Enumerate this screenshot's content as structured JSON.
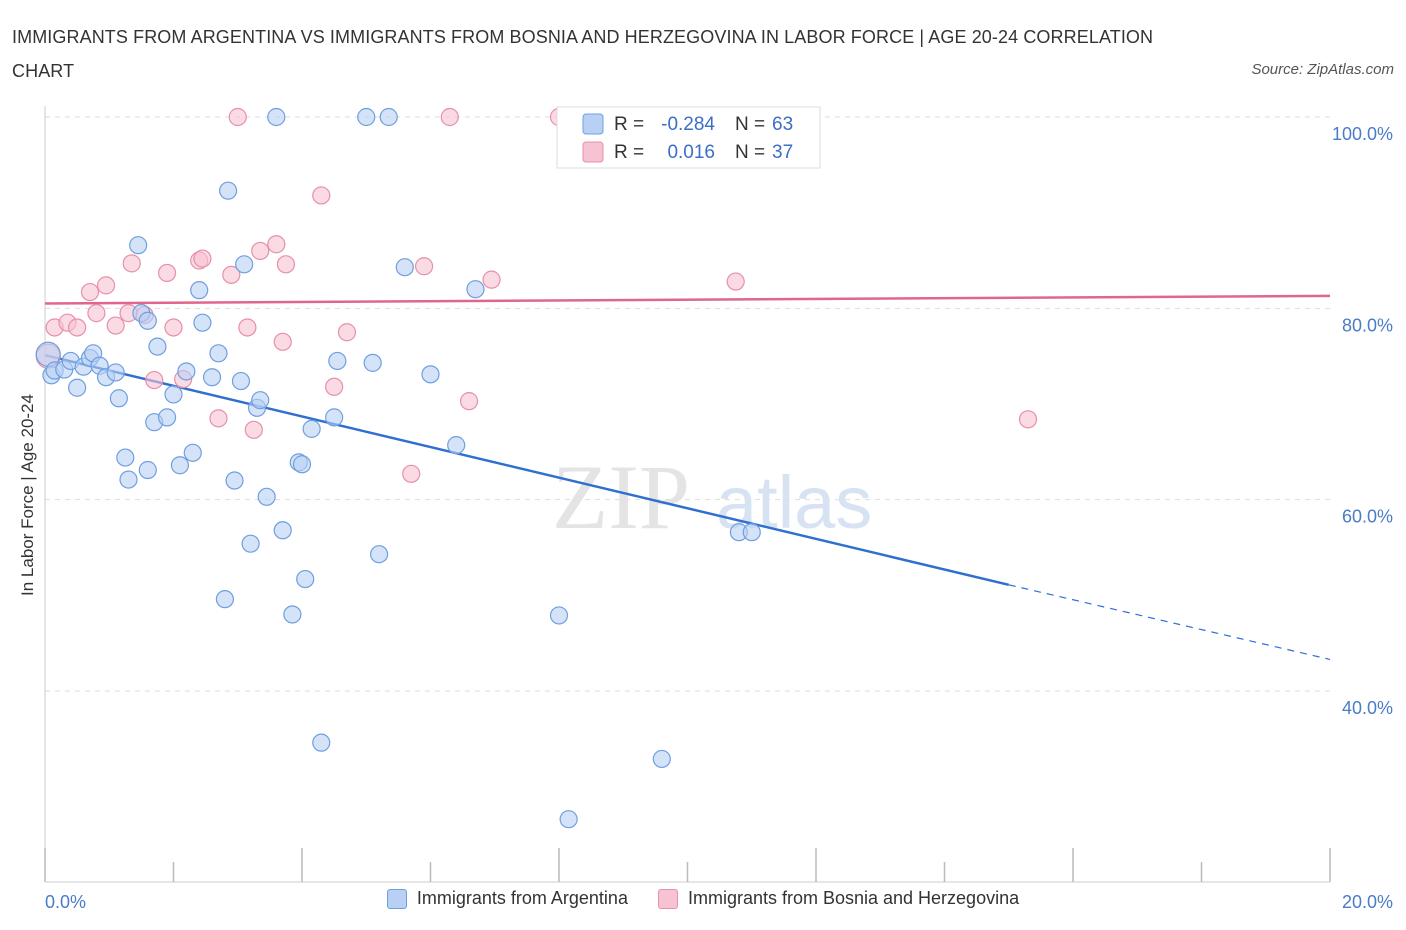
{
  "title": "IMMIGRANTS FROM ARGENTINA VS IMMIGRANTS FROM BOSNIA AND HERZEGOVINA IN LABOR FORCE | AGE 20-24 CORRELATION CHART",
  "source": "Source: ZipAtlas.com",
  "watermark": {
    "zip": "ZIP",
    "atlas": "atlas"
  },
  "colors": {
    "blue_fill": "#b8d0f3",
    "blue_stroke": "#6f9fe0",
    "blue_line": "#2f6fd0",
    "pink_fill": "#f7c3d2",
    "pink_stroke": "#e78fab",
    "pink_line": "#e0668e",
    "tick_label": "#4a7cc7",
    "grid": "#dddddd"
  },
  "legend": {
    "r_label": "R =",
    "n_label": "N =",
    "series1": {
      "r": "-0.284",
      "n": "63"
    },
    "series2": {
      "r": "0.016",
      "n": "37"
    }
  },
  "chart_data": {
    "type": "scatter",
    "title": "IMMIGRANTS FROM ARGENTINA VS IMMIGRANTS FROM BOSNIA AND HERZEGOVINA IN LABOR FORCE | AGE 20-24 CORRELATION CHART",
    "xlabel": "",
    "ylabel": "In Labor Force | Age 20-24",
    "xlim": [
      0,
      20
    ],
    "ylim": [
      20,
      100
    ],
    "x_tick_labels": [
      "0.0%",
      "20.0%"
    ],
    "y_ticks": [
      40,
      60,
      80,
      100
    ],
    "y_tick_labels": [
      "40.0%",
      "60.0%",
      "80.0%",
      "100.0%"
    ],
    "grid": true,
    "legend_position": "top-center",
    "series": [
      {
        "name": "Immigrants from Argentina",
        "color": "#6f9fe0",
        "r": -0.284,
        "n": 63,
        "trend": {
          "x0": 0,
          "y0": 75.1,
          "x1": 15.0,
          "y1": 51.1,
          "dashed_to_x": 20,
          "dashed_to_y": 43.3
        },
        "points": [
          [
            0.05,
            75.2
          ],
          [
            0.1,
            73.0
          ],
          [
            0.15,
            73.5
          ],
          [
            0.3,
            73.6
          ],
          [
            0.4,
            74.5
          ],
          [
            0.5,
            71.7
          ],
          [
            0.6,
            73.9
          ],
          [
            0.7,
            74.8
          ],
          [
            0.75,
            75.3
          ],
          [
            0.85,
            74.0
          ],
          [
            0.95,
            72.8
          ],
          [
            1.1,
            73.3
          ],
          [
            1.15,
            70.6
          ],
          [
            1.25,
            64.4
          ],
          [
            1.3,
            62.1
          ],
          [
            1.45,
            86.6
          ],
          [
            1.5,
            79.5
          ],
          [
            1.6,
            78.7
          ],
          [
            1.6,
            63.1
          ],
          [
            1.7,
            68.1
          ],
          [
            1.75,
            76.0
          ],
          [
            1.9,
            68.6
          ],
          [
            2.0,
            71.0
          ],
          [
            2.1,
            63.6
          ],
          [
            2.2,
            73.4
          ],
          [
            2.3,
            64.9
          ],
          [
            2.4,
            81.9
          ],
          [
            2.45,
            78.5
          ],
          [
            2.6,
            72.8
          ],
          [
            2.7,
            75.3
          ],
          [
            2.8,
            49.6
          ],
          [
            2.85,
            92.3
          ],
          [
            2.95,
            62.0
          ],
          [
            3.05,
            72.4
          ],
          [
            3.1,
            84.6
          ],
          [
            3.2,
            55.4
          ],
          [
            3.3,
            69.6
          ],
          [
            3.35,
            70.4
          ],
          [
            3.45,
            60.3
          ],
          [
            3.6,
            100.0
          ],
          [
            3.7,
            56.8
          ],
          [
            3.85,
            48.0
          ],
          [
            3.95,
            63.9
          ],
          [
            4.0,
            63.7
          ],
          [
            4.05,
            51.7
          ],
          [
            4.15,
            67.4
          ],
          [
            4.3,
            34.6
          ],
          [
            4.5,
            68.6
          ],
          [
            4.55,
            74.5
          ],
          [
            5.0,
            100.0
          ],
          [
            5.1,
            74.3
          ],
          [
            5.2,
            54.3
          ],
          [
            5.35,
            100.0
          ],
          [
            5.6,
            84.3
          ],
          [
            6.0,
            73.1
          ],
          [
            6.4,
            65.7
          ],
          [
            6.7,
            82.0
          ],
          [
            8.0,
            47.9
          ],
          [
            8.15,
            26.6
          ],
          [
            8.5,
            100.0
          ],
          [
            9.6,
            32.9
          ],
          [
            10.8,
            56.6
          ],
          [
            11.0,
            56.6
          ]
        ]
      },
      {
        "name": "Immigrants from Bosnia and Herzegovina",
        "color": "#e78fab",
        "r": 0.016,
        "n": 37,
        "trend": {
          "x0": 0,
          "y0": 80.5,
          "x1": 20,
          "y1": 81.3
        },
        "points": [
          [
            0.05,
            75.0
          ],
          [
            0.15,
            78.0
          ],
          [
            0.35,
            78.5
          ],
          [
            0.5,
            78.0
          ],
          [
            0.7,
            81.7
          ],
          [
            0.8,
            79.5
          ],
          [
            0.95,
            82.4
          ],
          [
            1.1,
            78.2
          ],
          [
            1.3,
            79.5
          ],
          [
            1.35,
            84.7
          ],
          [
            1.55,
            79.3
          ],
          [
            1.7,
            72.5
          ],
          [
            1.9,
            83.7
          ],
          [
            2.0,
            78.0
          ],
          [
            2.15,
            72.6
          ],
          [
            2.4,
            85.0
          ],
          [
            2.45,
            85.2
          ],
          [
            2.7,
            68.5
          ],
          [
            2.9,
            83.5
          ],
          [
            3.0,
            100.0
          ],
          [
            3.15,
            78.0
          ],
          [
            3.25,
            67.3
          ],
          [
            3.35,
            86.0
          ],
          [
            3.6,
            86.7
          ],
          [
            3.7,
            76.5
          ],
          [
            3.75,
            84.6
          ],
          [
            4.3,
            91.8
          ],
          [
            4.5,
            71.8
          ],
          [
            4.7,
            77.5
          ],
          [
            5.7,
            62.7
          ],
          [
            5.9,
            84.4
          ],
          [
            6.3,
            100.0
          ],
          [
            6.6,
            70.3
          ],
          [
            6.95,
            83.0
          ],
          [
            8.0,
            100.0
          ],
          [
            10.75,
            82.8
          ],
          [
            15.3,
            68.4
          ]
        ]
      }
    ]
  }
}
